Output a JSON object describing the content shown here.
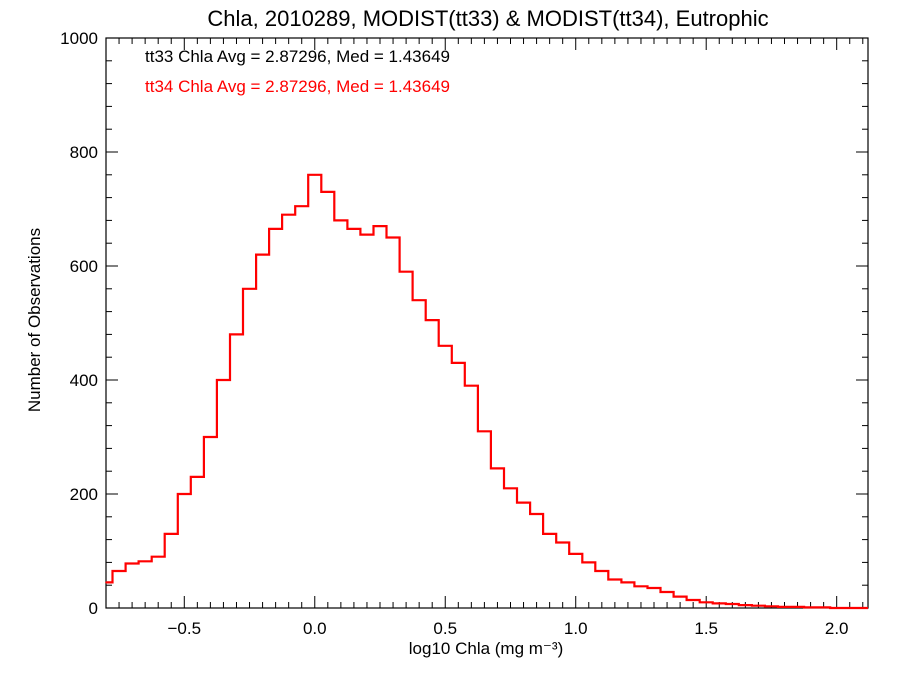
{
  "chart_data": {
    "type": "line",
    "title": "Chla, 2010289, MODIST(tt33) & MODIST(tt34), Eutrophic",
    "xlabel": "log10 Chla (mg m⁻³)",
    "ylabel": "Number of Observations",
    "xlim": [
      -0.8,
      2.12
    ],
    "ylim": [
      0,
      1000
    ],
    "x_ticks": [
      -0.5,
      0.0,
      0.5,
      1.0,
      1.5,
      2.0
    ],
    "x_tick_labels": [
      "−0.5",
      "0.0",
      "0.5",
      "1.0",
      "1.5",
      "2.0"
    ],
    "y_ticks": [
      0,
      200,
      400,
      600,
      800,
      1000
    ],
    "y_tick_labels": [
      "0",
      "200",
      "400",
      "600",
      "800",
      "1000"
    ],
    "grid": false,
    "annotations": [
      {
        "text": "tt33 Chla Avg = 2.87296, Med = 1.43649",
        "color": "#000000"
      },
      {
        "text": "tt34 Chla Avg = 2.87296, Med = 1.43649",
        "color": "#ff0000"
      }
    ],
    "series": [
      {
        "name": "tt34",
        "color": "#ff0000",
        "step": true,
        "x": [
          -0.8,
          -0.75,
          -0.7,
          -0.65,
          -0.6,
          -0.55,
          -0.5,
          -0.45,
          -0.4,
          -0.35,
          -0.3,
          -0.25,
          -0.2,
          -0.15,
          -0.1,
          -0.05,
          0.0,
          0.05,
          0.1,
          0.15,
          0.2,
          0.25,
          0.3,
          0.35,
          0.4,
          0.45,
          0.5,
          0.55,
          0.6,
          0.65,
          0.7,
          0.75,
          0.8,
          0.85,
          0.9,
          0.95,
          1.0,
          1.05,
          1.1,
          1.15,
          1.2,
          1.25,
          1.3,
          1.35,
          1.4,
          1.45,
          1.5,
          1.55,
          1.6,
          1.65,
          1.7,
          1.75,
          1.8,
          1.85,
          1.9,
          1.95,
          2.0,
          2.05,
          2.1
        ],
        "values": [
          45,
          65,
          78,
          82,
          90,
          130,
          200,
          230,
          300,
          400,
          480,
          560,
          620,
          665,
          690,
          705,
          760,
          730,
          680,
          665,
          655,
          670,
          650,
          590,
          540,
          505,
          460,
          430,
          390,
          310,
          245,
          210,
          185,
          165,
          130,
          115,
          95,
          80,
          65,
          50,
          45,
          38,
          35,
          28,
          20,
          14,
          10,
          8,
          7,
          5,
          4,
          3,
          2,
          2,
          1,
          1,
          0,
          0,
          0
        ]
      }
    ]
  }
}
